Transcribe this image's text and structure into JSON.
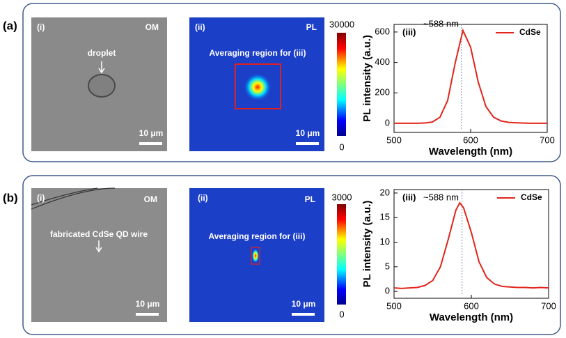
{
  "panels": [
    {
      "label": "(a)",
      "om": {
        "label": "(i)",
        "mode": "OM",
        "annotation": "droplet",
        "scale_bar": "10 μm"
      },
      "pl": {
        "label": "(ii)",
        "mode": "PL",
        "annotation": "Averaging region for (iii)",
        "scale_bar": "10 μm",
        "colorbar_ticks": [
          30000,
          0
        ]
      }
    },
    {
      "label": "(b)",
      "om": {
        "label": "(i)",
        "mode": "OM",
        "annotation": "fabricated CdSe QD wire",
        "scale_bar": "10 μm"
      },
      "pl": {
        "label": "(ii)",
        "mode": "PL",
        "annotation": "Averaging region for (iii)",
        "scale_bar": "10 μm",
        "colorbar_ticks": [
          3000,
          0
        ]
      }
    }
  ],
  "chart_data": [
    {
      "type": "line",
      "panel_label": "(iii)",
      "annotation": "~588 nm",
      "reference_x": 588,
      "x_label": "Wavelength (nm)",
      "y_label": "PL intensity (a.u.)",
      "x": [
        500,
        510,
        520,
        530,
        540,
        550,
        560,
        570,
        580,
        590,
        600,
        610,
        620,
        630,
        640,
        650,
        660,
        670,
        680,
        690,
        700
      ],
      "series": [
        {
          "name": "CdSe",
          "color": "#e0251b",
          "values": [
            0,
            0,
            0,
            0,
            2,
            8,
            40,
            150,
            400,
            610,
            500,
            270,
            110,
            40,
            15,
            6,
            3,
            1,
            0,
            0,
            0
          ]
        }
      ],
      "xlim": [
        500,
        700
      ],
      "xticks": [
        500,
        600,
        700
      ],
      "ylim": [
        -60,
        650
      ],
      "yticks": [
        0,
        200,
        400,
        600
      ],
      "legend": "upper right"
    },
    {
      "type": "line",
      "panel_label": "(iii)",
      "annotation": "~588 nm",
      "reference_x": 588,
      "x_label": "Wavelength (nm)",
      "y_label": "PL intensity (a.u.)",
      "x": [
        500,
        510,
        520,
        530,
        540,
        550,
        560,
        570,
        580,
        585,
        590,
        600,
        610,
        620,
        630,
        640,
        650,
        660,
        670,
        680,
        690,
        700
      ],
      "series": [
        {
          "name": "CdSe",
          "color": "#e0251b",
          "values": [
            0.7,
            0.6,
            0.7,
            0.8,
            1.2,
            2.2,
            5,
            10.5,
            16.5,
            18,
            17,
            12,
            6,
            2.8,
            1.5,
            1.0,
            0.9,
            0.8,
            0.8,
            0.7,
            0.8,
            0.7
          ]
        }
      ],
      "xlim": [
        500,
        700
      ],
      "xticks": [
        500,
        600,
        700
      ],
      "ylim": [
        -1.4,
        20.7
      ],
      "yticks": [
        0,
        5,
        10,
        15,
        20
      ],
      "legend": "upper right"
    }
  ]
}
